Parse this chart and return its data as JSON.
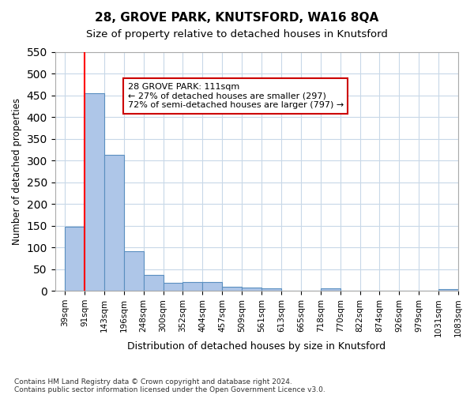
{
  "title1": "28, GROVE PARK, KNUTSFORD, WA16 8QA",
  "title2": "Size of property relative to detached houses in Knutsford",
  "xlabel": "Distribution of detached houses by size in Knutsford",
  "ylabel": "Number of detached properties",
  "footnote1": "Contains HM Land Registry data © Crown copyright and database right 2024.",
  "footnote2": "Contains public sector information licensed under the Open Government Licence v3.0.",
  "bin_labels": [
    "39sqm",
    "91sqm",
    "143sqm",
    "196sqm",
    "248sqm",
    "300sqm",
    "352sqm",
    "404sqm",
    "457sqm",
    "509sqm",
    "561sqm",
    "613sqm",
    "665sqm",
    "718sqm",
    "770sqm",
    "822sqm",
    "874sqm",
    "926sqm",
    "979sqm",
    "1031sqm",
    "1083sqm"
  ],
  "bar_heights": [
    148,
    455,
    313,
    91,
    37,
    19,
    20,
    20,
    10,
    7,
    5,
    0,
    0,
    5,
    0,
    0,
    0,
    0,
    0,
    4
  ],
  "bar_color": "#aec6e8",
  "bar_edge_color": "#5a8fc0",
  "red_line_x": 1,
  "annotation_text": "28 GROVE PARK: 111sqm\n← 27% of detached houses are smaller (297)\n72% of semi-detached houses are larger (797) →",
  "annotation_box_color": "#ffffff",
  "annotation_box_edge": "#cc0000",
  "ylim": [
    0,
    550
  ],
  "yticks": [
    0,
    50,
    100,
    150,
    200,
    250,
    300,
    350,
    400,
    450,
    500,
    550
  ],
  "background_color": "#ffffff",
  "grid_color": "#c8d8e8"
}
